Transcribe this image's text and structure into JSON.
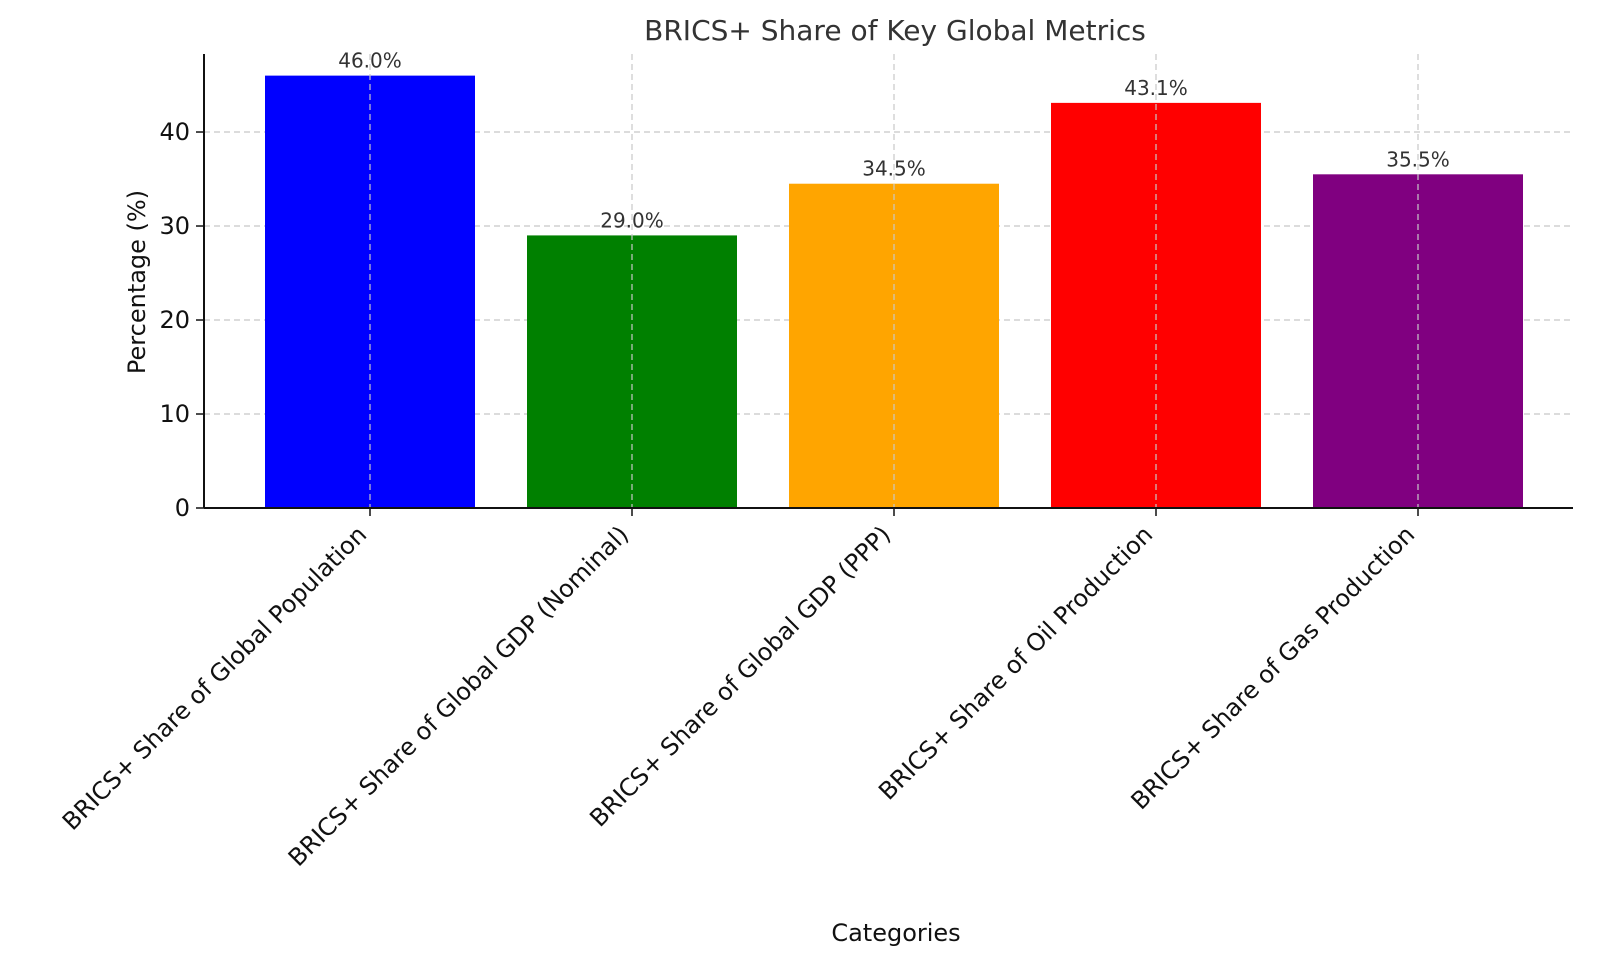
{
  "chart_data": {
    "type": "bar",
    "title": "BRICS+ Share of Key Global Metrics",
    "xlabel": "Categories",
    "ylabel": "Percentage (%)",
    "categories": [
      "BRICS+ Share of Global Population",
      "BRICS+ Share of Global GDP (Nominal)",
      "BRICS+ Share of Global GDP (PPP)",
      "BRICS+ Share of Oil Production",
      "BRICS+ Share of Gas Production"
    ],
    "values": [
      46.0,
      29.0,
      34.5,
      43.1,
      35.5
    ],
    "value_labels": [
      "46.0%",
      "29.0%",
      "34.5%",
      "43.1%",
      "35.5%"
    ],
    "colors": [
      "#0000ff",
      "#008000",
      "#ffa500",
      "#ff0000",
      "#800080"
    ],
    "ylim": [
      0,
      48.3
    ],
    "yticks": [
      0,
      10,
      20,
      30,
      40
    ],
    "grid": true,
    "legend": "none"
  }
}
